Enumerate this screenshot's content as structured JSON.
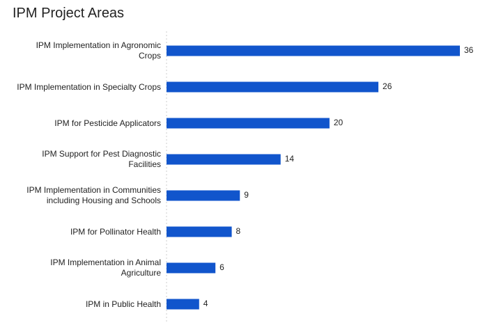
{
  "chart_data": {
    "type": "bar",
    "orientation": "horizontal",
    "title": "IPM Project Areas",
    "categories": [
      "IPM Implementation in Agronomic Crops",
      "IPM Implementation in Specialty Crops",
      "IPM for Pesticide Applicators",
      "IPM Support for Pest Diagnostic Facilities",
      "IPM Implementation in Communities including Housing and Schools",
      "IPM for Pollinator Health",
      "IPM Implementation in Animal Agriculture",
      "IPM in Public Health"
    ],
    "values": [
      36,
      26,
      20,
      14,
      9,
      8,
      6,
      4
    ],
    "color": "#1155cc",
    "xlim": [
      0,
      36
    ]
  }
}
